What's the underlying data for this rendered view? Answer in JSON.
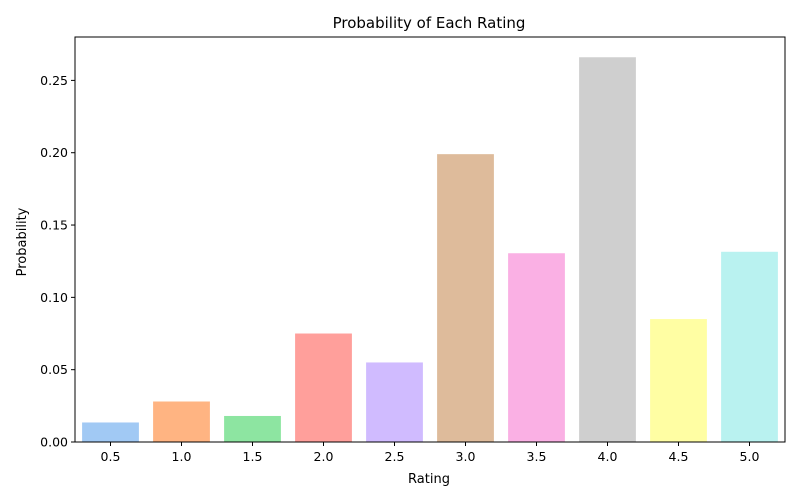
{
  "chart_data": {
    "type": "bar",
    "title": "Probability of Each Rating",
    "xlabel": "Rating",
    "ylabel": "Probability",
    "categories": [
      "0.5",
      "1.0",
      "1.5",
      "2.0",
      "2.5",
      "3.0",
      "3.5",
      "4.0",
      "4.5",
      "5.0"
    ],
    "values": [
      0.0135,
      0.028,
      0.018,
      0.075,
      0.055,
      0.199,
      0.1305,
      0.266,
      0.085,
      0.1315
    ],
    "ylim": [
      0,
      0.28
    ],
    "yticks": [
      0.0,
      0.05,
      0.1,
      0.15,
      0.2,
      0.25
    ],
    "ytick_labels": [
      "0.00",
      "0.05",
      "0.10",
      "0.15",
      "0.20",
      "0.25"
    ],
    "colors": [
      "#a1c9f4",
      "#ffb482",
      "#8de5a1",
      "#ff9f9b",
      "#d0bbff",
      "#debb9b",
      "#fab0e4",
      "#cfcfcf",
      "#fffea3",
      "#b9f2f0"
    ],
    "grid": false,
    "legend": "none"
  }
}
